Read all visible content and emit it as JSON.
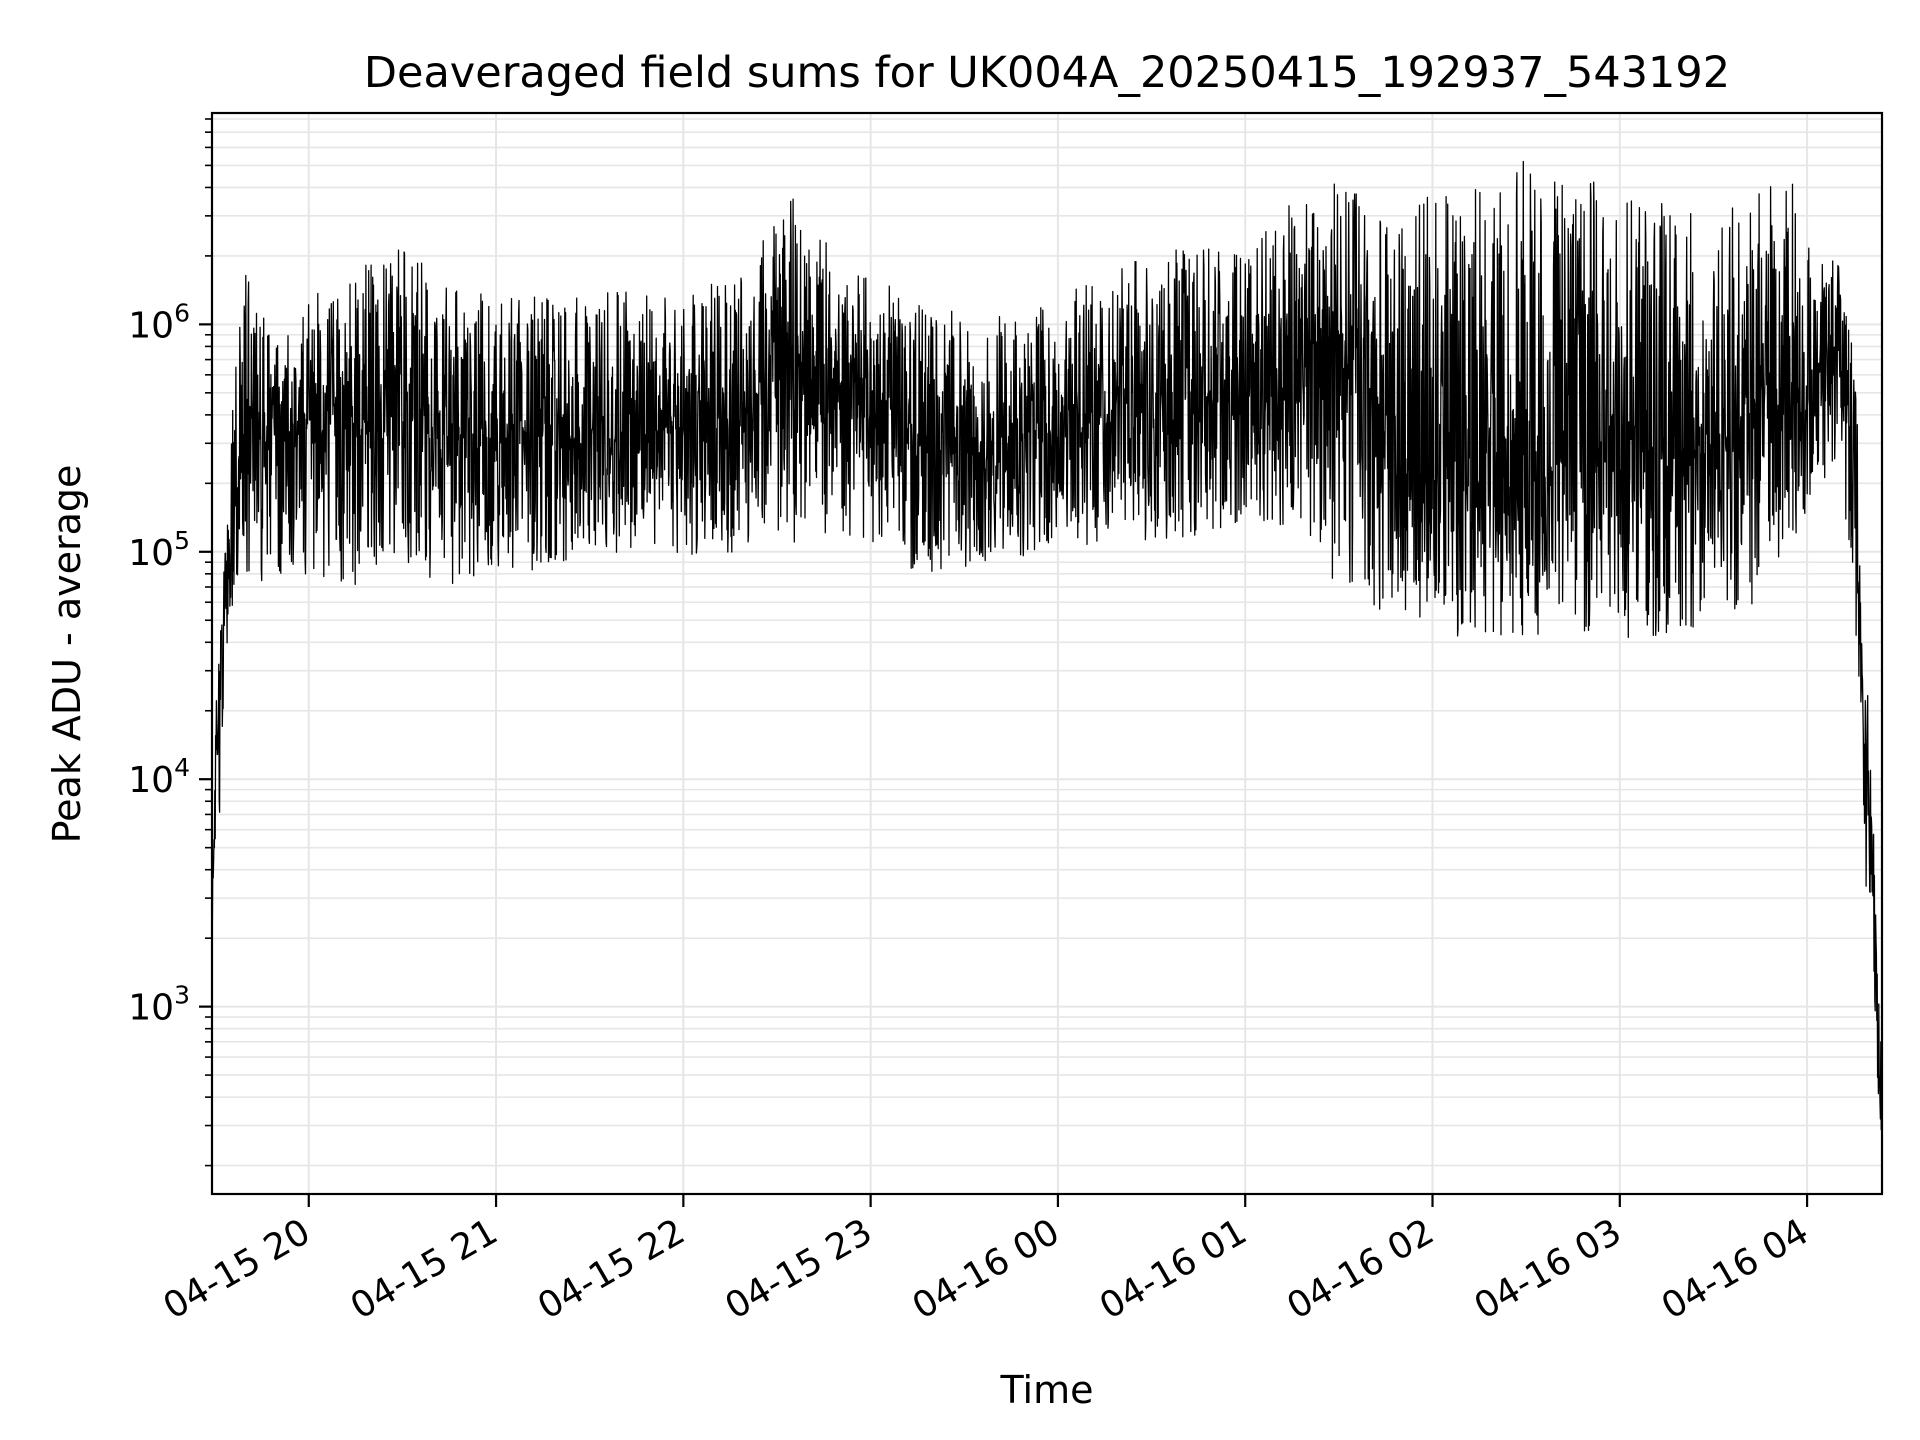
{
  "chart_data": {
    "type": "line",
    "title": "Deaveraged field sums for UK004A_20250415_192937_543192",
    "xlabel": "Time",
    "ylabel": "Peak ADU - average",
    "y_scale": "log",
    "ylim": [
      150,
      8500000
    ],
    "xlim": [
      "2025-04-15 19:29",
      "2025-04-16 04:24"
    ],
    "grid": true,
    "line_color": "#000000",
    "grid_color": "#e6e6e6",
    "x_ticks": [
      {
        "value": "2025-04-15 20:00",
        "label": "04-15 20"
      },
      {
        "value": "2025-04-15 21:00",
        "label": "04-15 21"
      },
      {
        "value": "2025-04-15 22:00",
        "label": "04-15 22"
      },
      {
        "value": "2025-04-15 23:00",
        "label": "04-15 23"
      },
      {
        "value": "2025-04-16 00:00",
        "label": "04-16 00"
      },
      {
        "value": "2025-04-16 01:00",
        "label": "04-16 01"
      },
      {
        "value": "2025-04-16 02:00",
        "label": "04-16 02"
      },
      {
        "value": "2025-04-16 03:00",
        "label": "04-16 03"
      },
      {
        "value": "2025-04-16 04:00",
        "label": "04-16 04"
      }
    ],
    "y_ticks": [
      {
        "value": 1000,
        "base": "10",
        "exp": "3"
      },
      {
        "value": 10000,
        "base": "10",
        "exp": "4"
      },
      {
        "value": 100000,
        "base": "10",
        "exp": "5"
      },
      {
        "value": 1000000,
        "base": "10",
        "exp": "6"
      }
    ],
    "series": [
      {
        "x": [
          "2025-04-15 19:29",
          "2025-04-15 19:30",
          "2025-04-15 19:32",
          "2025-04-15 19:33",
          "2025-04-15 19:34",
          "2025-04-15 19:36",
          "2025-04-15 19:38",
          "2025-04-15 19:40",
          "2025-04-15 19:43",
          "2025-04-15 19:46",
          "2025-04-15 19:50",
          "2025-04-15 20:00",
          "2025-04-15 20:15",
          "2025-04-15 20:30",
          "2025-04-15 20:45",
          "2025-04-15 21:00",
          "2025-04-15 21:20",
          "2025-04-15 21:40",
          "2025-04-15 22:00",
          "2025-04-15 22:20",
          "2025-04-15 22:35",
          "2025-04-15 22:50",
          "2025-04-15 23:05",
          "2025-04-15 23:20",
          "2025-04-15 23:40",
          "2025-04-16 00:00",
          "2025-04-16 00:20",
          "2025-04-16 00:40",
          "2025-04-16 01:00",
          "2025-04-16 01:15",
          "2025-04-16 01:30",
          "2025-04-16 01:45",
          "2025-04-16 02:00",
          "2025-04-16 02:15",
          "2025-04-16 02:30",
          "2025-04-16 02:45",
          "2025-04-16 03:00",
          "2025-04-16 03:15",
          "2025-04-16 03:30",
          "2025-04-16 03:45",
          "2025-04-16 04:00",
          "2025-04-16 04:05",
          "2025-04-16 04:10",
          "2025-04-16 04:14",
          "2025-04-16 04:17",
          "2025-04-16 04:19",
          "2025-04-16 04:21",
          "2025-04-16 04:22",
          "2025-04-16 04:23",
          "2025-04-16 04:24"
        ],
        "y": [
          2000,
          12000,
          25000,
          60000,
          80000,
          130000,
          250000,
          450000,
          350000,
          300000,
          350000,
          380000,
          350000,
          400000,
          320000,
          350000,
          320000,
          330000,
          350000,
          420000,
          700000,
          550000,
          380000,
          280000,
          260000,
          330000,
          420000,
          520000,
          400000,
          550000,
          900000,
          400000,
          200000,
          180000,
          220000,
          250000,
          230000,
          250000,
          300000,
          500000,
          600000,
          700000,
          800000,
          300000,
          60000,
          8000,
          3000,
          1200,
          500,
          250
        ],
        "y_low": [
          1900,
          5000,
          8000,
          30000,
          40000,
          60000,
          70000,
          80000,
          70000,
          70000,
          65000,
          80000,
          70000,
          75000,
          70000,
          75000,
          90000,
          100000,
          95000,
          100000,
          110000,
          120000,
          90000,
          80000,
          90000,
          100000,
          110000,
          115000,
          130000,
          130000,
          70000,
          50000,
          42000,
          40000,
          42000,
          45000,
          42000,
          42000,
          45000,
          60000,
          150000,
          200000,
          250000,
          60000,
          25000,
          3000,
          2000,
          700,
          280,
          240
        ],
        "y_high": [
          2500,
          25000,
          60000,
          150000,
          200000,
          500000,
          1200000,
          1800000,
          1200000,
          1100000,
          1100000,
          1300000,
          1800000,
          2200000,
          1500000,
          1400000,
          1300000,
          1500000,
          1300000,
          1800000,
          3800000,
          2200000,
          1500000,
          1200000,
          1100000,
          1300000,
          1800000,
          2400000,
          2000000,
          3500000,
          4500000,
          3000000,
          3800000,
          4000000,
          5500000,
          4800000,
          4000000,
          3500000,
          3000000,
          4200000,
          4500000,
          2200000,
          2000000,
          1000000,
          300000,
          40000,
          8000,
          3000,
          1400,
          700
        ]
      }
    ]
  }
}
